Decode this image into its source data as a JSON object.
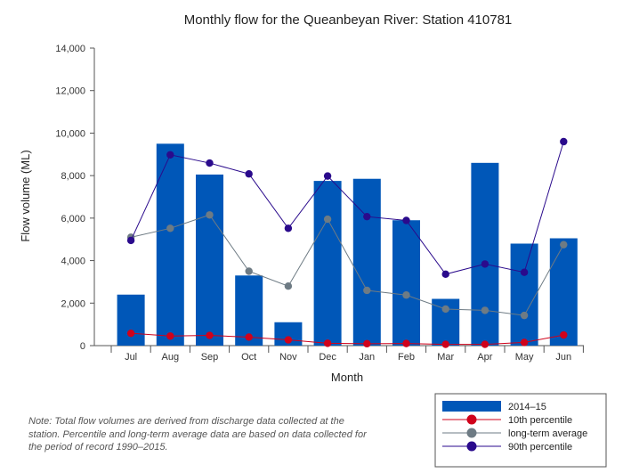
{
  "chart_data": {
    "type": "bar",
    "title": "Monthly flow for the Queanbeyan River: Station 410781",
    "xlabel": "Month",
    "ylabel": "Flow volume (ML)",
    "ylim": [
      0,
      14000
    ],
    "yticks": [
      0,
      2000,
      4000,
      6000,
      8000,
      10000,
      12000,
      14000
    ],
    "ytick_labels": [
      "0",
      "2,000",
      "4,000",
      "6,000",
      "8,000",
      "10,000",
      "12,000",
      "14,000"
    ],
    "categories": [
      "Jul",
      "Aug",
      "Sep",
      "Oct",
      "Nov",
      "Dec",
      "Jan",
      "Feb",
      "Mar",
      "Apr",
      "May",
      "Jun"
    ],
    "bar_series": {
      "name": "2014–15",
      "color": "#0057b8",
      "values": [
        2400,
        9500,
        8050,
        3300,
        1100,
        7750,
        7850,
        5900,
        2200,
        8600,
        4800,
        5050
      ]
    },
    "line_series": [
      {
        "name": "10th percentile",
        "color": "#d0021b",
        "values": [
          580,
          450,
          480,
          400,
          270,
          110,
          90,
          100,
          60,
          60,
          150,
          500
        ]
      },
      {
        "name": "long-term average",
        "color": "#6e7b84",
        "values": [
          5100,
          5520,
          6150,
          3500,
          2800,
          5950,
          2600,
          2380,
          1720,
          1660,
          1420,
          4750
        ]
      },
      {
        "name": "90th percentile",
        "color": "#2a0a8c",
        "values": [
          4950,
          8980,
          8590,
          8080,
          5520,
          7980,
          6070,
          5890,
          3360,
          3840,
          3450,
          9600
        ]
      }
    ],
    "legend_position": "bottom-right",
    "grid": false
  },
  "note": "Note: Total flow volumes are derived from discharge data collected at the station. Percentile and long-term average data are based on data collected for the period of record 1990–2015."
}
